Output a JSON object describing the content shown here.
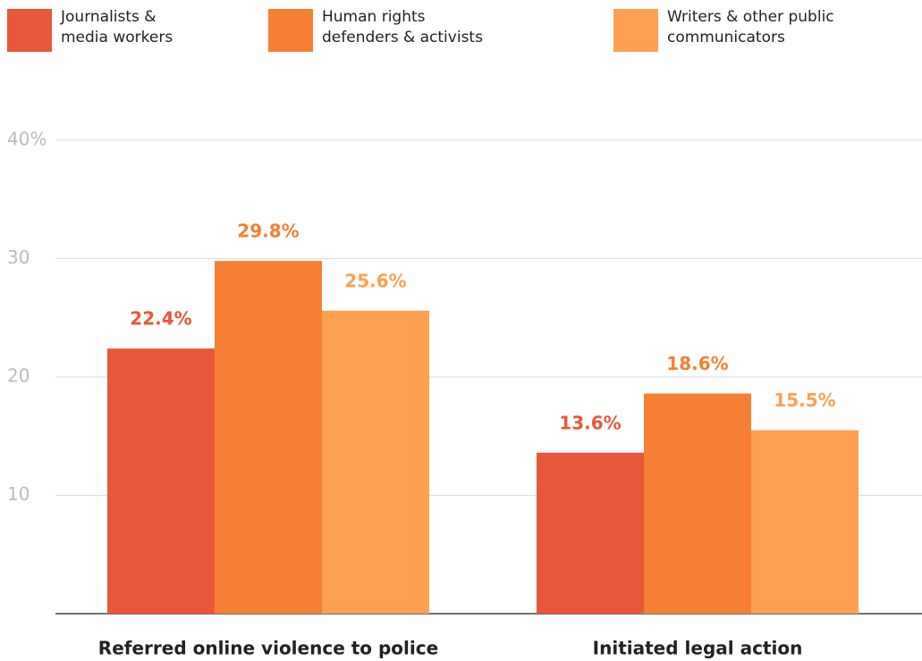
{
  "chart_data": {
    "type": "bar",
    "categories": [
      "Referred online violence to police",
      "Initiated legal action"
    ],
    "series": [
      {
        "name": "Journalists & media workers",
        "color": "#e8573a",
        "values": [
          22.4,
          13.6
        ],
        "value_labels": [
          "22.4%",
          "13.6%"
        ]
      },
      {
        "name": "Human rights defenders & activists",
        "color": "#f58033",
        "values": [
          29.8,
          18.6
        ],
        "value_labels": [
          "29.8%",
          "18.6%"
        ]
      },
      {
        "name": "Writers & other public communicators",
        "color": "#fda050",
        "values": [
          25.6,
          15.5
        ],
        "value_labels": [
          "25.6%",
          "15.5%"
        ]
      }
    ],
    "ylim": [
      0,
      40
    ],
    "yticks": [
      10,
      20,
      30,
      {
        "value": 40,
        "label": "40%"
      }
    ],
    "grid": true,
    "legend": "top"
  }
}
